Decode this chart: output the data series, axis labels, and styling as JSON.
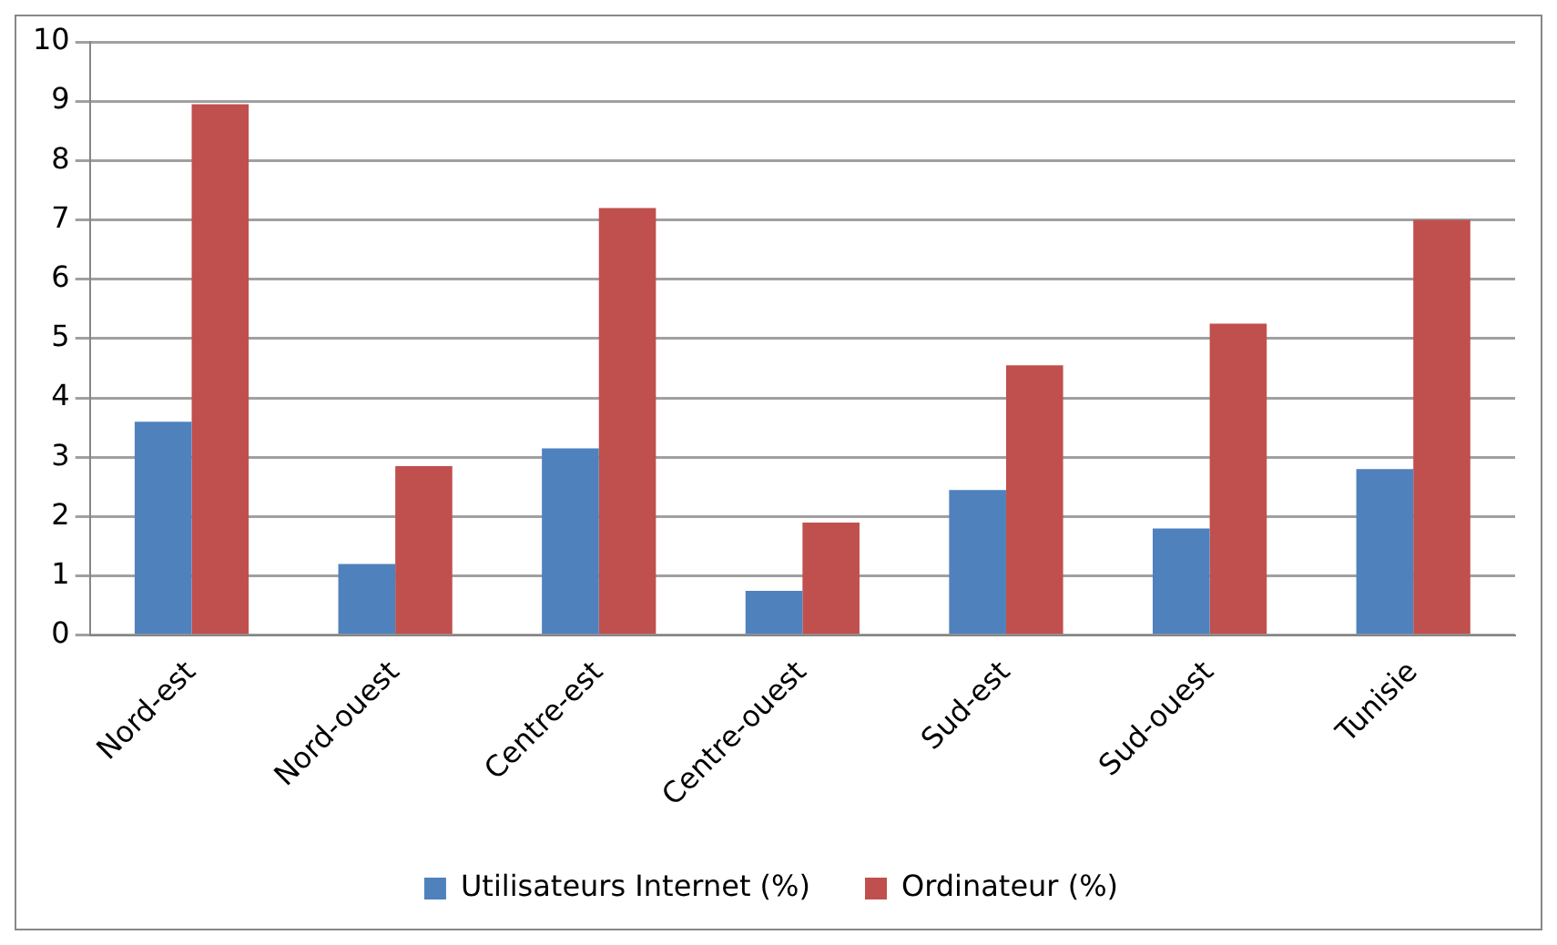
{
  "chart_data": {
    "type": "bar",
    "categories": [
      "Nord-est",
      "Nord-ouest",
      "Centre-est",
      "Centre-ouest",
      "Sud-est",
      "Sud-ouest",
      "Tunisie"
    ],
    "series": [
      {
        "name": "Utilisateurs Internet (%)",
        "color": "#4f81bd",
        "values": [
          3.6,
          1.2,
          3.15,
          0.75,
          2.45,
          1.8,
          2.8
        ]
      },
      {
        "name": "Ordinateur (%)",
        "color": "#c0504d",
        "values": [
          8.95,
          2.85,
          7.2,
          1.9,
          4.55,
          5.25,
          7.0
        ]
      }
    ],
    "ylim": [
      0,
      10
    ],
    "yticks": [
      0,
      1,
      2,
      3,
      4,
      5,
      6,
      7,
      8,
      9,
      10
    ],
    "grid": "y",
    "legend": "bottom"
  }
}
